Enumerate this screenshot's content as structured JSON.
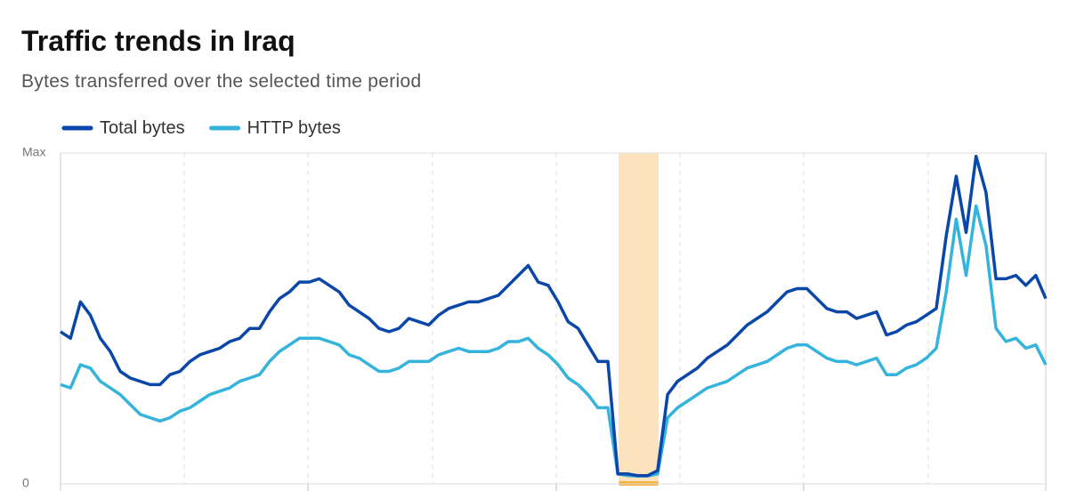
{
  "chart_data": {
    "type": "line",
    "title": "Traffic trends in Iraq",
    "subtitle": "Bytes transferred over the selected time period",
    "ylim": [
      0,
      100
    ],
    "yticks": [
      0,
      {
        "value": 100,
        "label": "Max"
      }
    ],
    "grid": true,
    "legend": "top-left",
    "series": [
      {
        "name": "Total bytes",
        "color": "#0a47a8",
        "values": [
          46,
          44,
          55,
          51,
          44,
          40,
          34,
          32,
          31,
          30,
          30,
          33,
          34,
          37,
          39,
          40,
          41,
          43,
          44,
          47,
          47,
          52,
          56,
          58,
          61,
          61,
          62,
          60,
          58,
          54,
          52,
          50,
          47,
          46,
          47,
          50,
          49,
          48,
          51,
          53,
          54,
          55,
          55,
          56,
          57,
          60,
          63,
          66,
          61,
          60,
          55,
          49,
          47,
          42,
          37,
          37,
          3,
          3,
          2.5,
          2.5,
          4,
          27,
          31,
          33,
          35,
          38,
          40,
          42,
          45,
          48,
          50,
          52,
          55,
          58,
          59,
          59,
          56,
          53,
          52,
          52,
          50,
          51,
          52,
          45,
          46,
          48,
          49,
          51,
          53,
          75,
          93,
          76,
          99,
          88,
          62,
          62,
          63,
          60,
          63,
          56
        ]
      },
      {
        "name": "HTTP bytes",
        "color": "#34b4dc",
        "values": [
          30,
          29,
          36,
          35,
          31,
          29,
          27,
          24,
          21,
          20,
          19,
          20,
          22,
          23,
          25,
          27,
          28,
          29,
          31,
          32,
          33,
          37,
          40,
          42,
          44,
          44,
          44,
          43,
          42,
          39,
          38,
          36,
          34,
          34,
          35,
          37,
          37,
          37,
          39,
          40,
          41,
          40,
          40,
          40,
          41,
          43,
          43,
          44,
          41,
          39,
          36,
          32,
          30,
          27,
          23,
          23,
          3,
          2.5,
          2.4,
          2.4,
          3,
          20,
          23,
          25,
          27,
          29,
          30,
          31,
          33,
          35,
          36,
          37,
          39,
          41,
          42,
          42,
          40,
          38,
          37,
          37,
          36,
          37,
          38,
          33,
          33,
          35,
          36,
          38,
          41,
          58,
          80,
          63,
          84,
          72,
          47,
          43,
          44,
          41,
          42,
          36
        ]
      }
    ]
  }
}
